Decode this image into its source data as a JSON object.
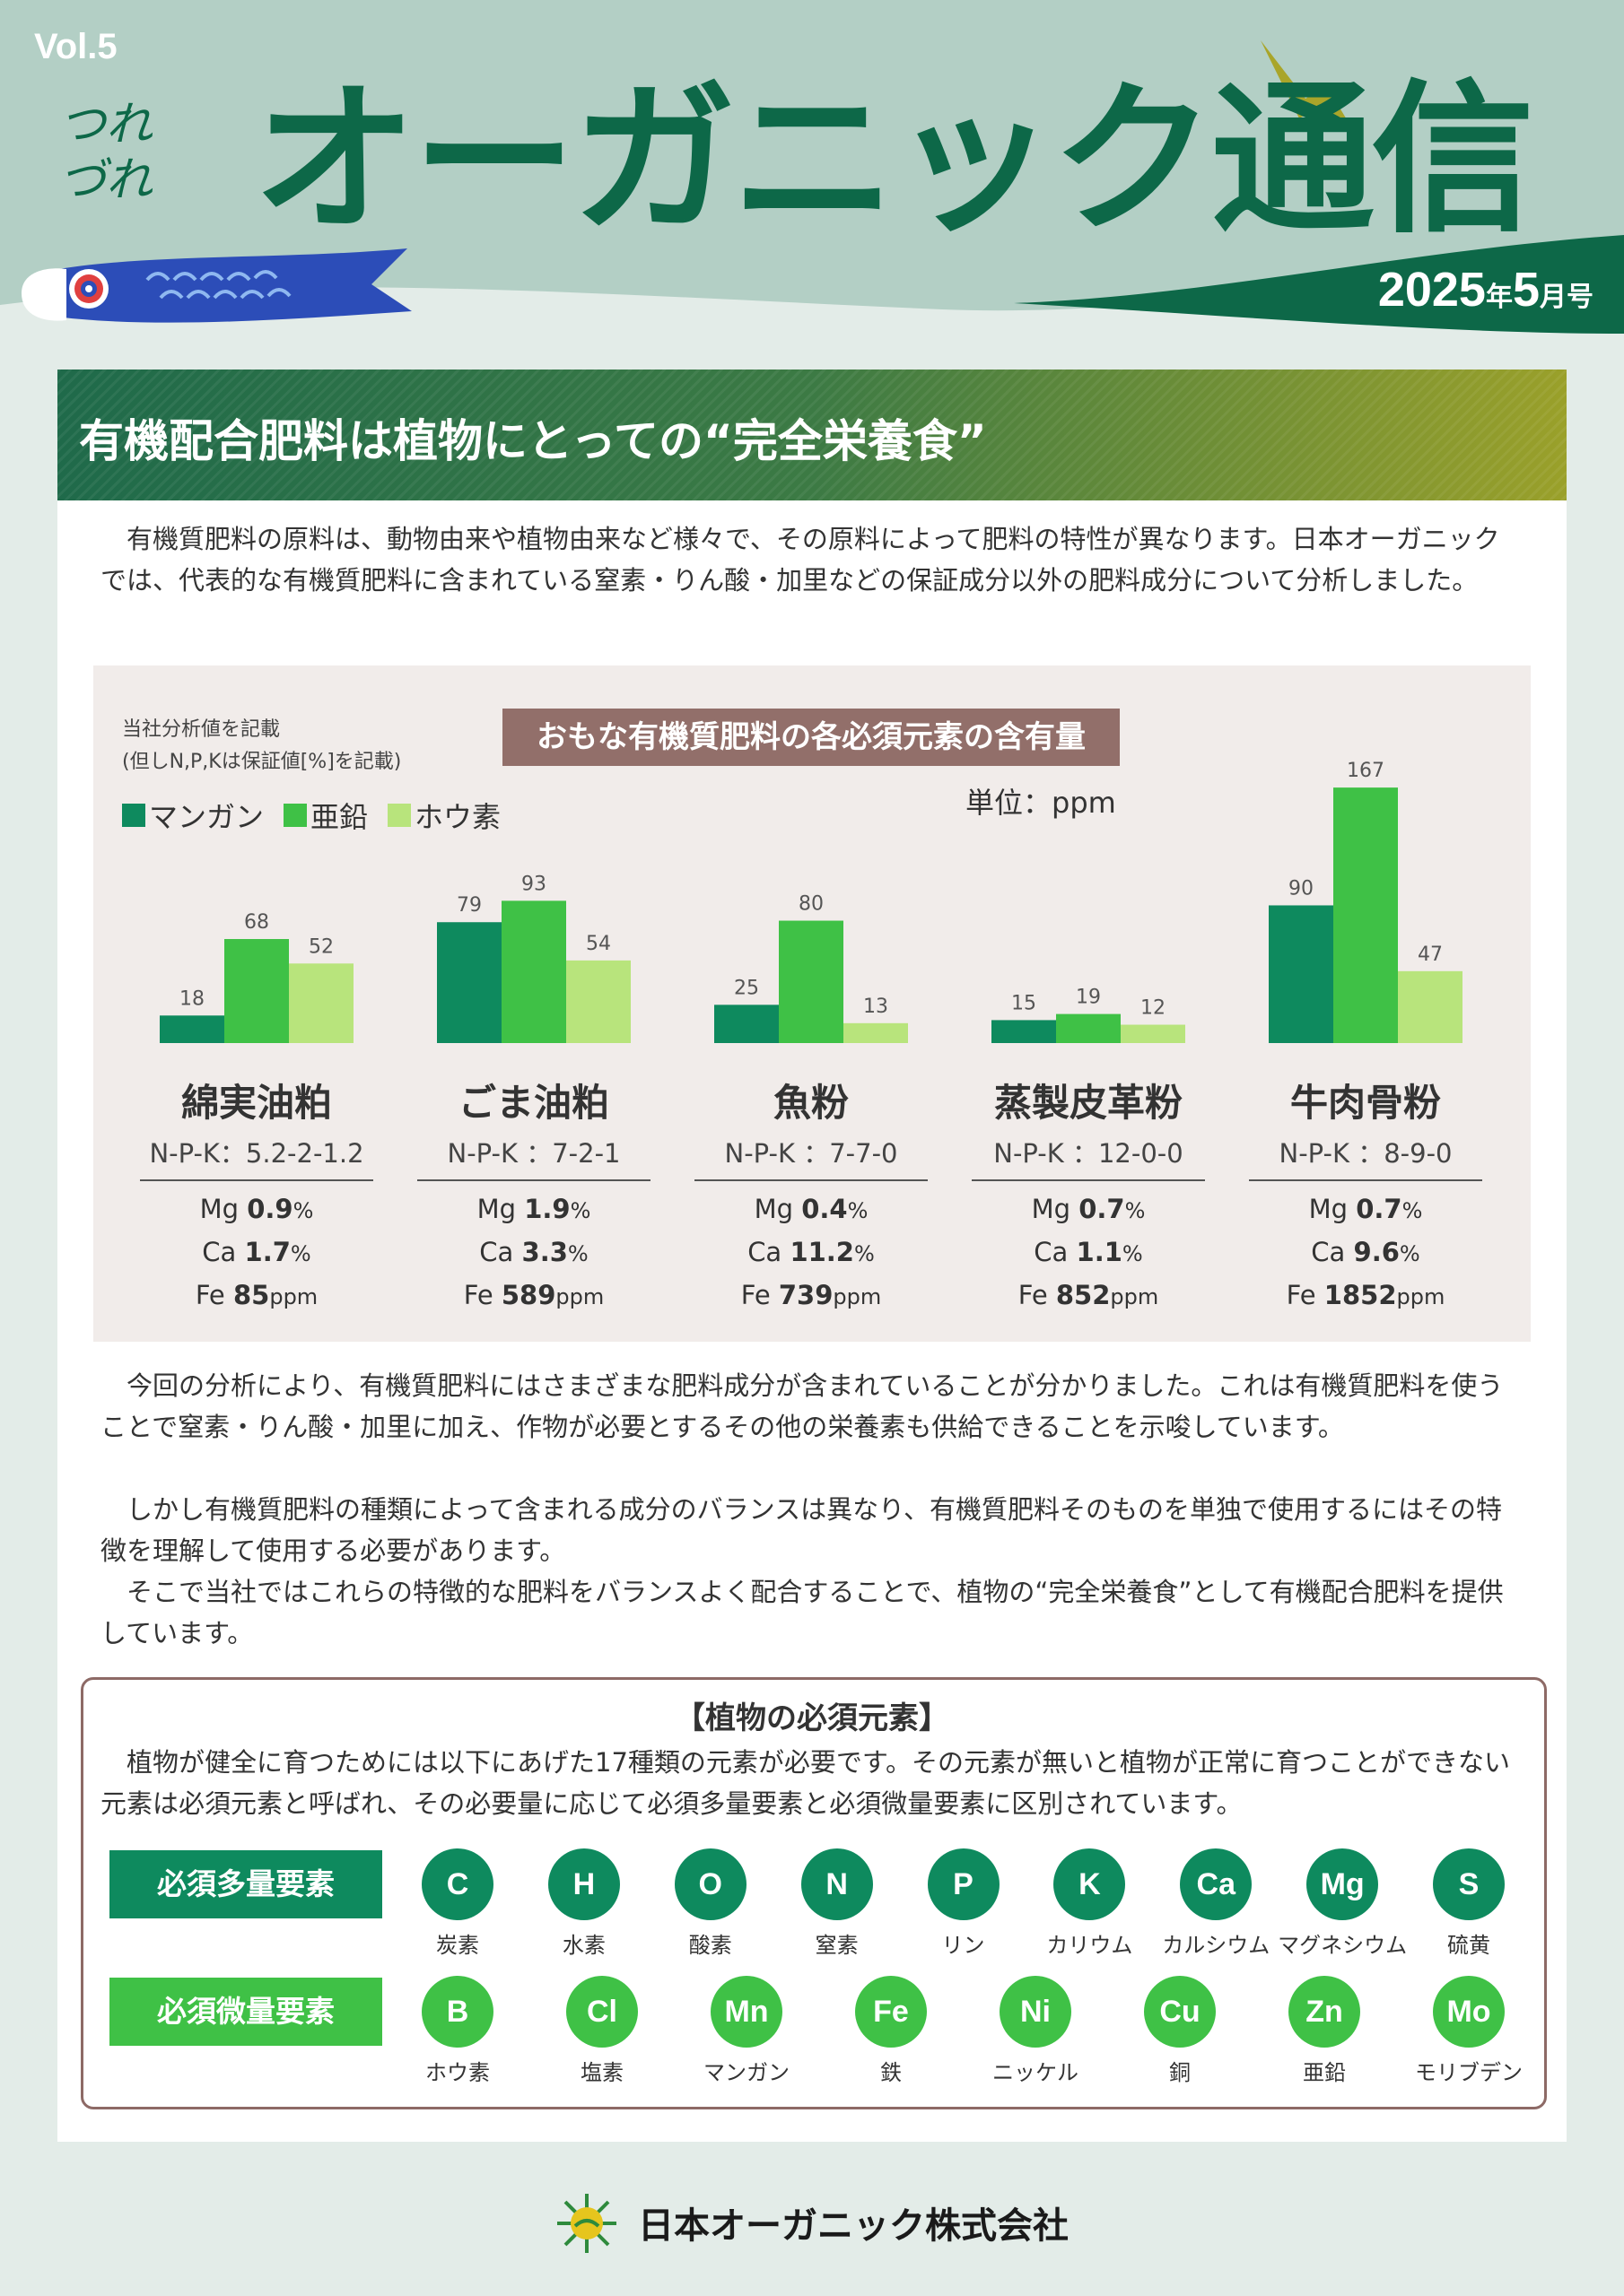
{
  "header": {
    "vol": "Vol.5",
    "subtitle": "つれづれ",
    "title": "オーガニック通信",
    "date_main": "2025",
    "date_year": "年",
    "date_month": "5",
    "date_suffix": "月号"
  },
  "banner": {
    "title": "有機配合肥料は植物にとっての“完全栄養食”"
  },
  "intro": "　有機質肥料の原料は、動物由来や植物由来など様々で、その原料によって肥料の特性が異なります。日本オーガニックでは、代表的な有機質肥料に含まれている窒素・りん酸・加里などの保証成分以外の肥料成分について分析しました。",
  "chart_box": {
    "note_line1": "当社分析値を記載",
    "note_line2": "(但しN,P,Kは保証値[%]を記載)",
    "title": "おもな有機質肥料の各必須元素の含有量",
    "unit": "単位：ppm"
  },
  "chart_data": {
    "type": "bar",
    "title": "おもな有機質肥料の各必須元素の含有量",
    "unit": "ppm",
    "categories": [
      "綿実油粕",
      "ごま油粕",
      "魚粉",
      "蒸製皮革粉",
      "牛肉骨粉"
    ],
    "series": [
      {
        "name": "マンガン",
        "color": "#0e8a5e",
        "values": [
          18,
          79,
          25,
          15,
          90
        ]
      },
      {
        "name": "亜鉛",
        "color": "#3fc146",
        "values": [
          68,
          93,
          80,
          19,
          167
        ]
      },
      {
        "name": "ホウ素",
        "color": "#b8e47c",
        "values": [
          52,
          54,
          13,
          12,
          47
        ]
      }
    ],
    "ylim": [
      0,
      170
    ],
    "legend": "top-left"
  },
  "fertilizers": [
    {
      "name": "綿実油粕",
      "npk": "N-P-K：5.2-2-1.2",
      "mg": "0.9",
      "ca": "1.7",
      "fe": "85"
    },
    {
      "name": "ごま油粕",
      "npk": "N-P-K ：7-2-1",
      "mg": "1.9",
      "ca": "3.3",
      "fe": "589"
    },
    {
      "name": "魚粉",
      "npk": "N-P-K ：7-7-0",
      "mg": "0.4",
      "ca": "11.2",
      "fe": "739"
    },
    {
      "name": "蒸製皮革粉",
      "npk": "N-P-K ：12-0-0",
      "mg": "0.7",
      "ca": "1.1",
      "fe": "852"
    },
    {
      "name": "牛肉骨粉",
      "npk": "N-P-K ：8-9-0",
      "mg": "0.7",
      "ca": "9.6",
      "fe": "1852"
    }
  ],
  "labels": {
    "mg": "Mg ",
    "ca": "Ca ",
    "fe": "Fe ",
    "pct": "%",
    "ppm": "ppm"
  },
  "body": {
    "p1": "　今回の分析により、有機質肥料にはさまざまな肥料成分が含まれていることが分かりました。これは有機質肥料を使うことで窒素・りん酸・加里に加え、作物が必要とするその他の栄養素も供給できることを示唆しています。",
    "p2": "　しかし有機質肥料の種類によって含まれる成分のバランスは異なり、有機質肥料そのものを単独で使用するにはその特徴を理解して使用する必要があります。",
    "p3": "　そこで当社ではこれらの特徴的な肥料をバランスよく配合することで、植物の“完全栄養食”として有機配合肥料を提供しています。"
  },
  "essential": {
    "title": "【植物の必須元素】",
    "text": "　植物が健全に育つためには以下にあげた17種類の元素が必要です。その元素が無いと植物が正常に育つことができない元素は必須元素と呼ばれ、その必要量に応じて必須多量要素と必須微量要素に区別されています。",
    "macro_label": "必須多量要素",
    "micro_label": "必須微量要素",
    "macro_color": "#0e8a5e",
    "micro_color": "#3fc146",
    "macro": [
      {
        "sym": "C",
        "jp": "炭素"
      },
      {
        "sym": "H",
        "jp": "水素"
      },
      {
        "sym": "O",
        "jp": "酸素"
      },
      {
        "sym": "N",
        "jp": "窒素"
      },
      {
        "sym": "P",
        "jp": "リン"
      },
      {
        "sym": "K",
        "jp": "カリウム"
      },
      {
        "sym": "Ca",
        "jp": "カルシウム"
      },
      {
        "sym": "Mg",
        "jp": "マグネシウム"
      },
      {
        "sym": "S",
        "jp": "硫黄"
      }
    ],
    "micro": [
      {
        "sym": "B",
        "jp": "ホウ素"
      },
      {
        "sym": "Cl",
        "jp": "塩素"
      },
      {
        "sym": "Mn",
        "jp": "マンガン"
      },
      {
        "sym": "Fe",
        "jp": "鉄"
      },
      {
        "sym": "Ni",
        "jp": "ニッケル"
      },
      {
        "sym": "Cu",
        "jp": "銅"
      },
      {
        "sym": "Zn",
        "jp": "亜鉛"
      },
      {
        "sym": "Mo",
        "jp": "モリブデン"
      }
    ]
  },
  "footer": {
    "company": "日本オーガニック株式会社"
  }
}
